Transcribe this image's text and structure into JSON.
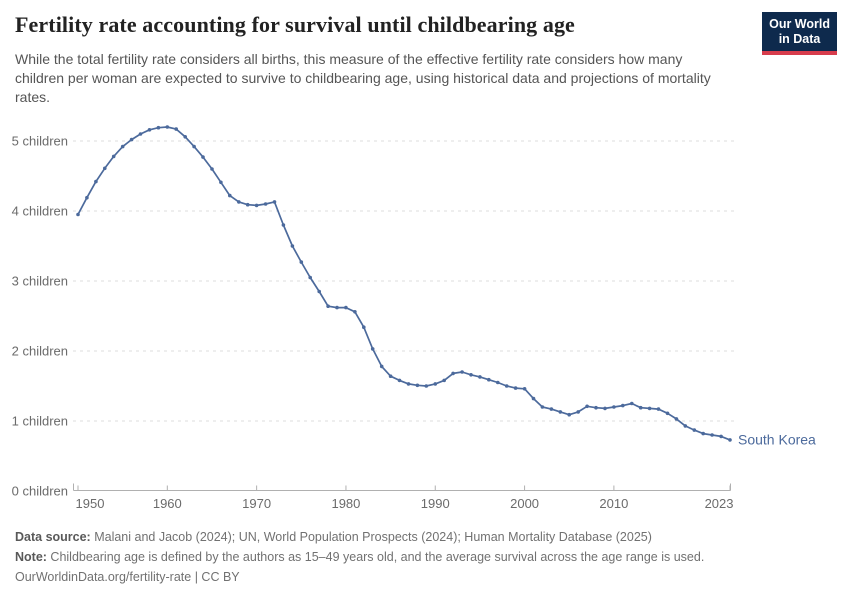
{
  "header": {
    "title": "Fertility rate accounting for survival until childbearing age",
    "subtitle": "While the total fertility rate considers all births, this measure of the effective fertility rate considers how many children per woman are expected to survive to childbearing age, using historical data and projections of mortality rates.",
    "logo": {
      "line1": "Our World",
      "line2": "in Data",
      "bg_color": "#0e2a4d",
      "accent_color": "#d73c4c"
    }
  },
  "chart_data": {
    "type": "line",
    "title": "Fertility rate accounting for survival until childbearing age",
    "xlabel": "",
    "ylabel": "children",
    "xlim": [
      1950,
      2023
    ],
    "ylim": [
      0,
      5.45
    ],
    "grid": "horizontal-dashed",
    "legend_position": "end-of-line",
    "x_ticks": [
      1950,
      1960,
      1970,
      1980,
      1990,
      2000,
      2010,
      2023
    ],
    "y_ticks": [
      0,
      1,
      2,
      3,
      4,
      5
    ],
    "y_tick_labels": [
      "0 children",
      "1 children",
      "2 children",
      "3 children",
      "4 children",
      "5 children"
    ],
    "series": [
      {
        "name": "South Korea",
        "color": "#4c6a9c",
        "x": [
          1950,
          1951,
          1952,
          1953,
          1954,
          1955,
          1956,
          1957,
          1958,
          1959,
          1960,
          1961,
          1962,
          1963,
          1964,
          1965,
          1966,
          1967,
          1968,
          1969,
          1970,
          1971,
          1972,
          1973,
          1974,
          1975,
          1976,
          1977,
          1978,
          1979,
          1980,
          1981,
          1982,
          1983,
          1984,
          1985,
          1986,
          1987,
          1988,
          1989,
          1990,
          1991,
          1992,
          1993,
          1994,
          1995,
          1996,
          1997,
          1998,
          1999,
          2000,
          2001,
          2002,
          2003,
          2004,
          2005,
          2006,
          2007,
          2008,
          2009,
          2010,
          2011,
          2012,
          2013,
          2014,
          2015,
          2016,
          2017,
          2018,
          2019,
          2020,
          2021,
          2022,
          2023
        ],
        "values": [
          3.95,
          4.19,
          4.42,
          4.61,
          4.78,
          4.92,
          5.02,
          5.1,
          5.16,
          5.19,
          5.2,
          5.17,
          5.06,
          4.92,
          4.77,
          4.6,
          4.41,
          4.22,
          4.13,
          4.09,
          4.08,
          4.1,
          4.13,
          3.8,
          3.5,
          3.27,
          3.05,
          2.85,
          2.64,
          2.62,
          2.62,
          2.56,
          2.34,
          2.03,
          1.78,
          1.64,
          1.58,
          1.53,
          1.51,
          1.5,
          1.53,
          1.58,
          1.68,
          1.7,
          1.66,
          1.63,
          1.59,
          1.55,
          1.5,
          1.47,
          1.46,
          1.32,
          1.2,
          1.17,
          1.13,
          1.09,
          1.13,
          1.21,
          1.19,
          1.18,
          1.2,
          1.22,
          1.25,
          1.19,
          1.18,
          1.17,
          1.11,
          1.03,
          0.93,
          0.87,
          0.82,
          0.8,
          0.78,
          0.73
        ]
      }
    ],
    "colors": {
      "grid": "#dcdcdc",
      "axis": "#b0b0b0",
      "tick_text": "#6b6b6b"
    }
  },
  "footer": {
    "data_source_label": "Data source:",
    "data_source": " Malani and Jacob (2024); UN, World Population Prospects (2024); Human Mortality Database (2025)",
    "note_label": "Note:",
    "note": " Childbearing age is defined by the authors as 15–49 years old, and the average survival across the age range is used.",
    "url": "OurWorldinData.org/fertility-rate",
    "divider": " | ",
    "license": "CC BY"
  }
}
